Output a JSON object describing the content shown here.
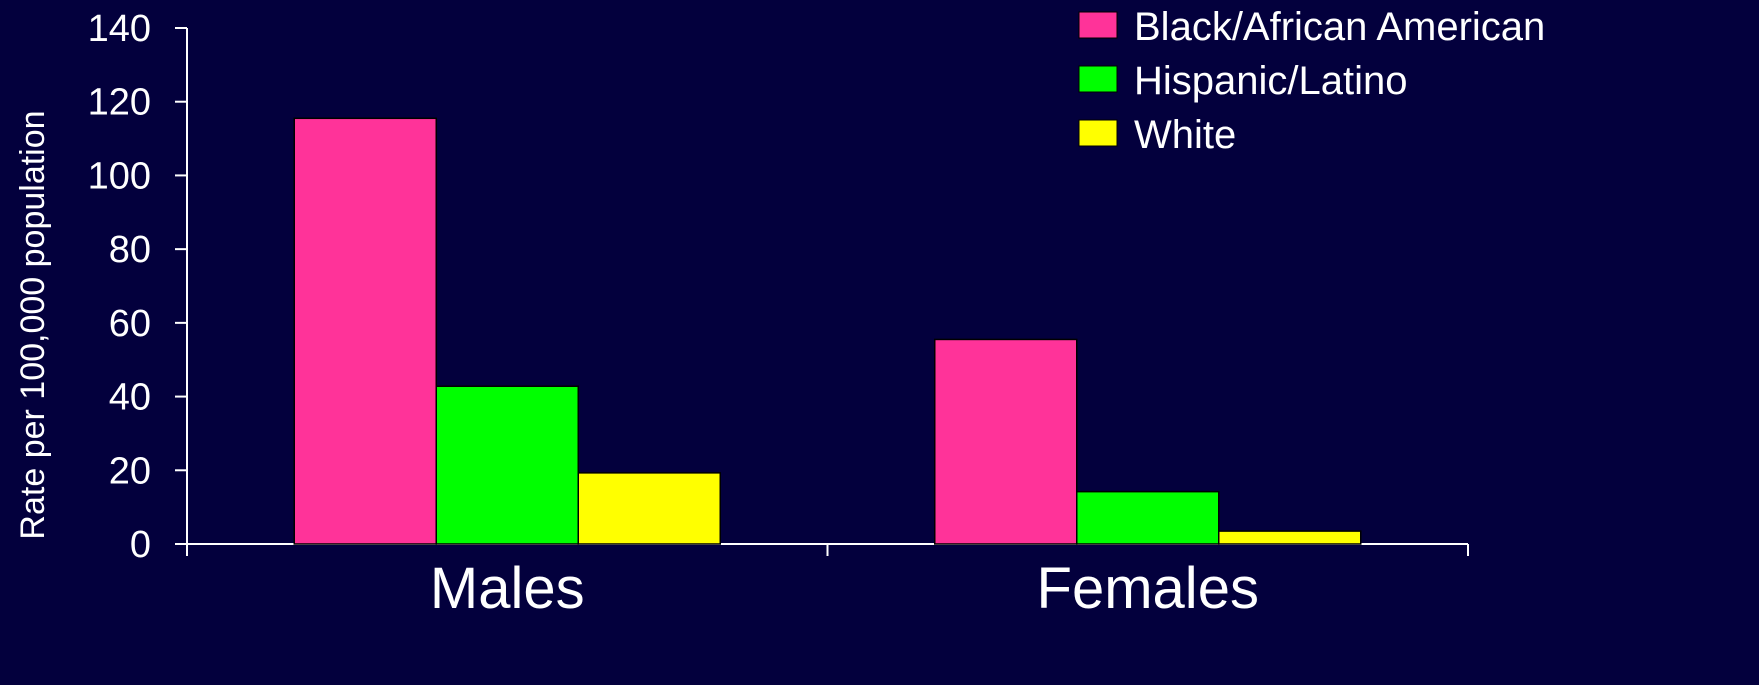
{
  "chart_data": {
    "type": "bar",
    "categories": [
      "Males",
      "Females"
    ],
    "series": [
      {
        "name": "Black/African American",
        "values": [
          115.5,
          55.5
        ],
        "color": "#ff3399"
      },
      {
        "name": "Hispanic/Latino",
        "values": [
          42.8,
          14.2
        ],
        "color": "#00ff00"
      },
      {
        "name": "White",
        "values": [
          19.3,
          3.5
        ],
        "color": "#ffff00"
      }
    ],
    "ylabel": "Rate per 100,000 population",
    "xlabel": "",
    "ylim": [
      0,
      140
    ],
    "yticks": [
      0,
      20,
      40,
      60,
      80,
      100,
      120,
      140
    ],
    "grid": false,
    "legend": "top-right",
    "background": "#03003d",
    "text_color": "#ffffff"
  }
}
